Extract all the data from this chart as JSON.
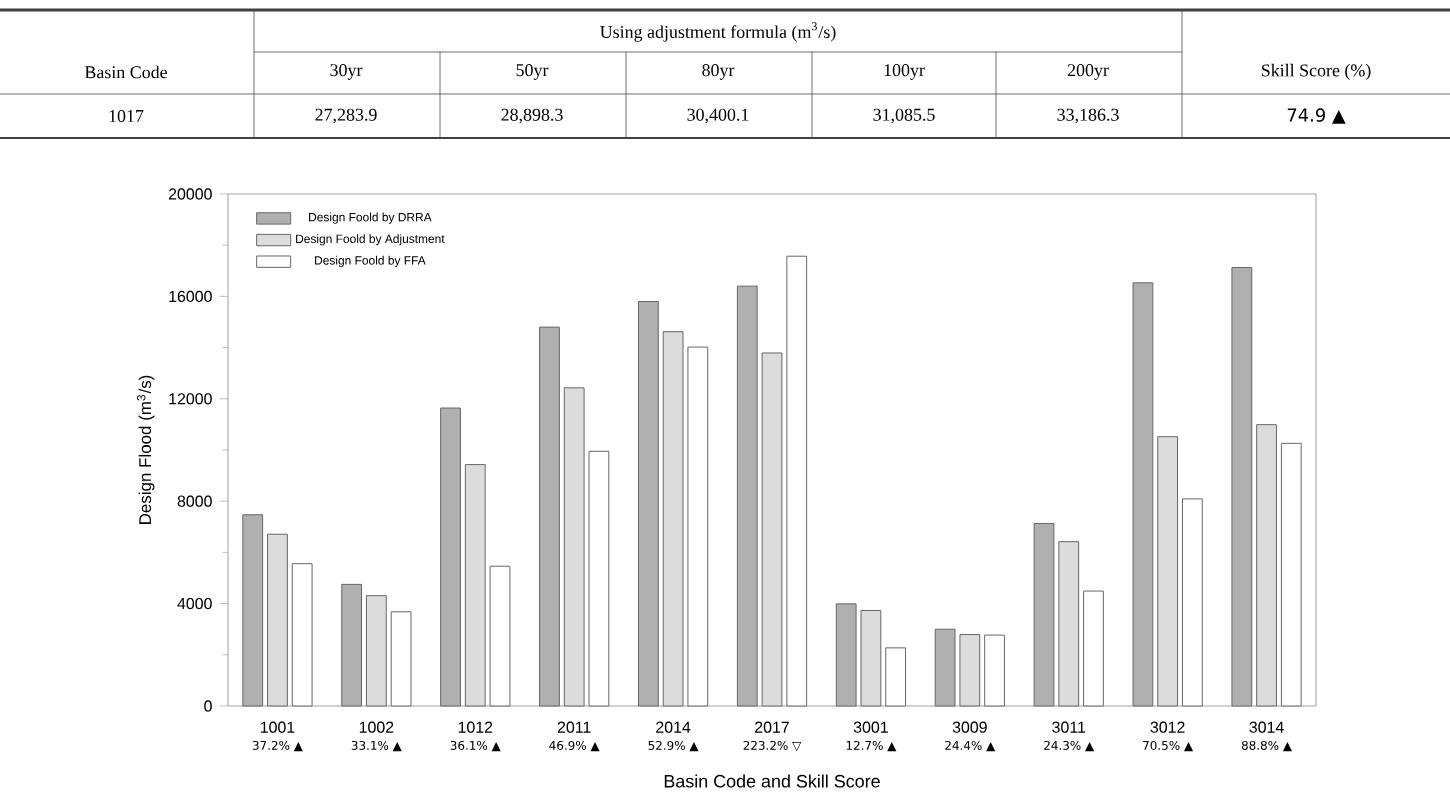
{
  "chart_data": [
    {
      "type": "other",
      "annotations": [
        "Basin Code",
        "Using adjustment formula (m$^{3}$/s)",
        "Skill Score (%)",
        "30yr",
        "50yr",
        "80yr",
        "100yr",
        "200yr",
        "1017",
        "27,283.9",
        "28,898.3",
        "30,400.1",
        "31,085.5",
        "33,186.3",
        "74.9 ▲"
      ]
    },
    {
      "type": "bar",
      "xlabel": "Basin Code and Skill Score",
      "ylabel": "Design Flood (m$^{3}$/s)",
      "categories": [
        "1001",
        "1002",
        "1012",
        "2011",
        "2014",
        "2017",
        "3001",
        "3009",
        "3011",
        "3012",
        "3014"
      ],
      "series": [
        {
          "name": "Design Foold by DRRA",
          "color": "#b0b0b0",
          "values": [
            7470,
            4750,
            11640,
            14800,
            15800,
            16400,
            3990,
            3000,
            7130,
            16530,
            17130
          ]
        },
        {
          "name": "Design Foold by Adjustment",
          "color": "#dcdcdc",
          "values": [
            6710,
            4310,
            9430,
            12430,
            14620,
            13790,
            3730,
            2790,
            6420,
            10520,
            10990
          ]
        },
        {
          "name": "Design Foold by FFA",
          "color": "#ffffff",
          "values": [
            5560,
            3680,
            5460,
            9950,
            14020,
            17570,
            2270,
            2770,
            4490,
            8090,
            10260
          ]
        }
      ],
      "ylim": [
        0,
        20000
      ],
      "yticks": [
        0,
        4000,
        8000,
        12000,
        16000,
        20000
      ],
      "legend": "top left",
      "annotations": [
        "37.2% ▲",
        "33.1% ▲",
        "36.1% ▲",
        "46.9% ▲",
        "52.9% ▲",
        "223.2% ▽",
        "12.7% ▲",
        "24.4% ▲",
        "24.3% ▲",
        "70.5% ▲",
        "88.8% ▲"
      ]
    }
  ]
}
